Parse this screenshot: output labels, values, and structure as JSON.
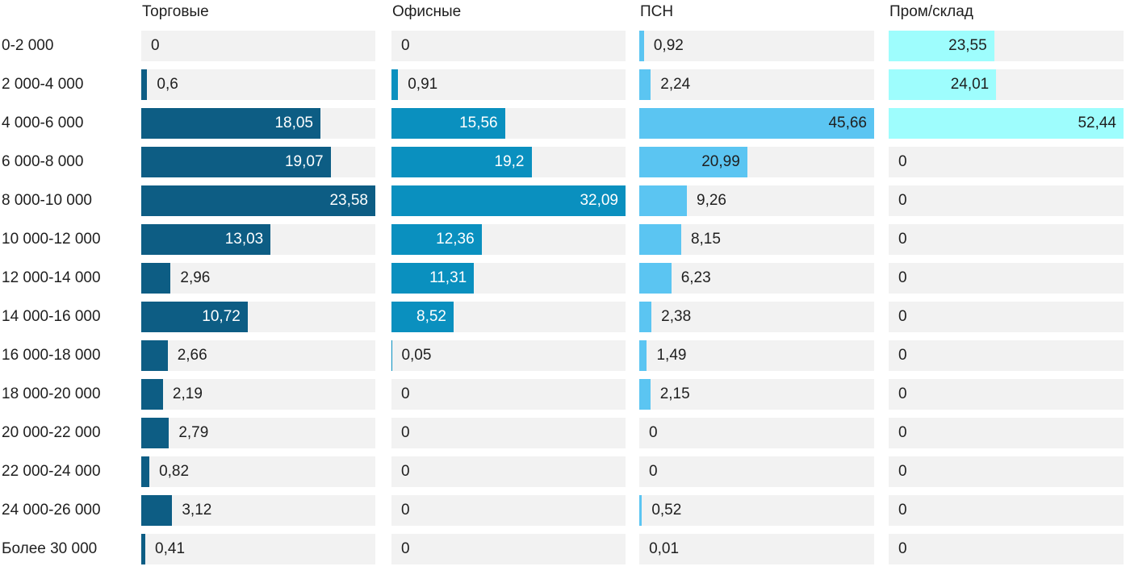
{
  "chart_data": {
    "type": "bar",
    "orientation": "horizontal",
    "title": "",
    "xlabel": "",
    "ylabel": "",
    "grid": false,
    "legend_position": "top-column-headers",
    "value_decimal_separator": ",",
    "scaling": "each column scaled to its own max value",
    "categories": [
      "0-2 000",
      "2 000-4 000",
      "4 000-6 000",
      "6 000-8 000",
      "8 000-10 000",
      "10 000-12 000",
      "12 000-14 000",
      "14 000-16 000",
      "16 000-18 000",
      "18 000-20 000",
      "20 000-22 000",
      "22 000-24 000",
      "24 000-26 000",
      "Более 30 000"
    ],
    "series": [
      {
        "name": "Торговые",
        "color": "#0d5d84",
        "inside_label_color": "#ffffff",
        "values": [
          0,
          0.6,
          18.05,
          19.07,
          23.58,
          13.03,
          2.96,
          10.72,
          2.66,
          2.19,
          2.79,
          0.82,
          3.12,
          0.41
        ],
        "labels": [
          "0",
          "0,6",
          "18,05",
          "19,07",
          "23,58",
          "13,03",
          "2,96",
          "10,72",
          "2,66",
          "2,19",
          "2,79",
          "0,82",
          "3,12",
          "0,41"
        ]
      },
      {
        "name": "Офисные",
        "color": "#0a90bf",
        "inside_label_color": "#ffffff",
        "values": [
          0,
          0.91,
          15.56,
          19.2,
          32.09,
          12.36,
          11.31,
          8.52,
          0.05,
          0,
          0,
          0,
          0,
          0
        ],
        "labels": [
          "0",
          "0,91",
          "15,56",
          "19,2",
          "32,09",
          "12,36",
          "11,31",
          "8,52",
          "0,05",
          "0",
          "0",
          "0",
          "0",
          "0"
        ]
      },
      {
        "name": "ПСН",
        "color": "#5bc5f2",
        "inside_label_color": "#1f1f1f",
        "values": [
          0.92,
          2.24,
          45.66,
          20.99,
          9.26,
          8.15,
          6.23,
          2.38,
          1.49,
          2.15,
          0,
          0,
          0.52,
          0.01
        ],
        "labels": [
          "0,92",
          "2,24",
          "45,66",
          "20,99",
          "9,26",
          "8,15",
          "6,23",
          "2,38",
          "1,49",
          "2,15",
          "0",
          "0",
          "0,52",
          "0,01"
        ]
      },
      {
        "name": "Пром/склад",
        "color": "#9efdfd",
        "inside_label_color": "#1f1f1f",
        "values": [
          23.55,
          24.01,
          52.44,
          0,
          0,
          0,
          0,
          0,
          0,
          0,
          0,
          0,
          0,
          0
        ],
        "labels": [
          "23,55",
          "24,01",
          "52,44",
          "0",
          "0",
          "0",
          "0",
          "0",
          "0",
          "0",
          "0",
          "0",
          "0",
          "0"
        ]
      }
    ],
    "colors": {
      "track_background": "#f2f2f2",
      "text": "#1f1f1f",
      "page_background": "#ffffff"
    }
  }
}
